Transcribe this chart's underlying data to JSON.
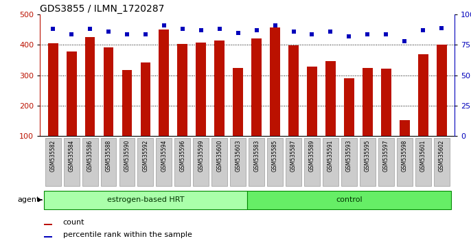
{
  "title": "GDS3855 / ILMN_1720287",
  "samples": [
    "GSM535582",
    "GSM535584",
    "GSM535586",
    "GSM535588",
    "GSM535590",
    "GSM535592",
    "GSM535594",
    "GSM535596",
    "GSM535599",
    "GSM535600",
    "GSM535603",
    "GSM535583",
    "GSM535585",
    "GSM535587",
    "GSM535589",
    "GSM535591",
    "GSM535593",
    "GSM535595",
    "GSM535597",
    "GSM535598",
    "GSM535601",
    "GSM535602"
  ],
  "counts": [
    405,
    378,
    425,
    393,
    318,
    342,
    451,
    403,
    409,
    415,
    324,
    422,
    458,
    399,
    328,
    347,
    291,
    324,
    322,
    152,
    370,
    400
  ],
  "percentile_ranks": [
    88,
    84,
    88,
    86,
    84,
    84,
    91,
    88,
    87,
    88,
    85,
    87,
    91,
    86,
    84,
    86,
    82,
    84,
    84,
    78,
    87,
    89
  ],
  "groups": [
    "estrogen-based HRT",
    "estrogen-based HRT",
    "estrogen-based HRT",
    "estrogen-based HRT",
    "estrogen-based HRT",
    "estrogen-based HRT",
    "estrogen-based HRT",
    "estrogen-based HRT",
    "estrogen-based HRT",
    "estrogen-based HRT",
    "estrogen-based HRT",
    "control",
    "control",
    "control",
    "control",
    "control",
    "control",
    "control",
    "control",
    "control",
    "control",
    "control"
  ],
  "bar_color": "#bb1100",
  "dot_color": "#0000bb",
  "ylim_left": [
    100,
    500
  ],
  "ylim_right": [
    0,
    100
  ],
  "yticks_left": [
    100,
    200,
    300,
    400,
    500
  ],
  "yticks_right": [
    0,
    25,
    50,
    75,
    100
  ],
  "ytick_labels_right": [
    "0",
    "25",
    "50",
    "75",
    "100%"
  ],
  "group_color_hrt": "#aaffaa",
  "group_color_ctrl": "#66ee66",
  "group_border_color": "#008800",
  "tick_bg_color": "#cccccc",
  "tick_border_color": "#999999",
  "bar_width": 0.55
}
